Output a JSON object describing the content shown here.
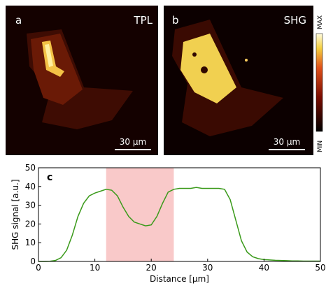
{
  "panels": [
    {
      "label": "a",
      "title": "TPL",
      "scale_bar": "30 µm"
    },
    {
      "label": "b",
      "title": "SHG",
      "scale_bar": "30 µm"
    }
  ],
  "colorbar": {
    "max": "MAX",
    "min": "MIN"
  },
  "chart_data": {
    "type": "line",
    "panel_label": "c",
    "x_label": "Distance [µm]",
    "y_label": "SHG signal [a.u.]",
    "x": [
      0,
      1,
      2,
      3,
      4,
      5,
      6,
      7,
      8,
      9,
      10,
      11,
      12,
      13,
      14,
      15,
      16,
      17,
      18,
      19,
      20,
      21,
      22,
      23,
      24,
      25,
      26,
      27,
      28,
      29,
      30,
      31,
      32,
      33,
      34,
      35,
      36,
      37,
      38,
      39,
      40,
      41,
      42,
      43,
      44,
      45,
      46,
      47,
      48,
      49,
      50
    ],
    "series": [
      {
        "color": "#3a9a1a",
        "values": [
          0,
          0,
          0.1,
          0.5,
          2,
          6,
          14,
          24,
          31,
          35,
          36.5,
          37.5,
          38.5,
          38,
          35,
          29,
          24,
          21,
          20,
          19,
          19.5,
          24,
          31,
          37,
          38.5,
          39,
          39,
          39,
          39.5,
          39,
          39,
          39,
          39,
          38.5,
          33,
          22,
          11,
          5,
          2.5,
          1.5,
          1,
          0.8,
          0.6,
          0.5,
          0.4,
          0.3,
          0.3,
          0.2,
          0.2,
          0.2,
          0.2
        ]
      }
    ],
    "highlight_x": [
      12,
      24
    ],
    "highlight_color": "#f9c9c9",
    "xlim": [
      0,
      50
    ],
    "ylim": [
      0,
      50
    ],
    "xticks": [
      0,
      10,
      20,
      30,
      40,
      50
    ],
    "yticks": [
      0,
      10,
      20,
      30,
      40,
      50
    ]
  }
}
